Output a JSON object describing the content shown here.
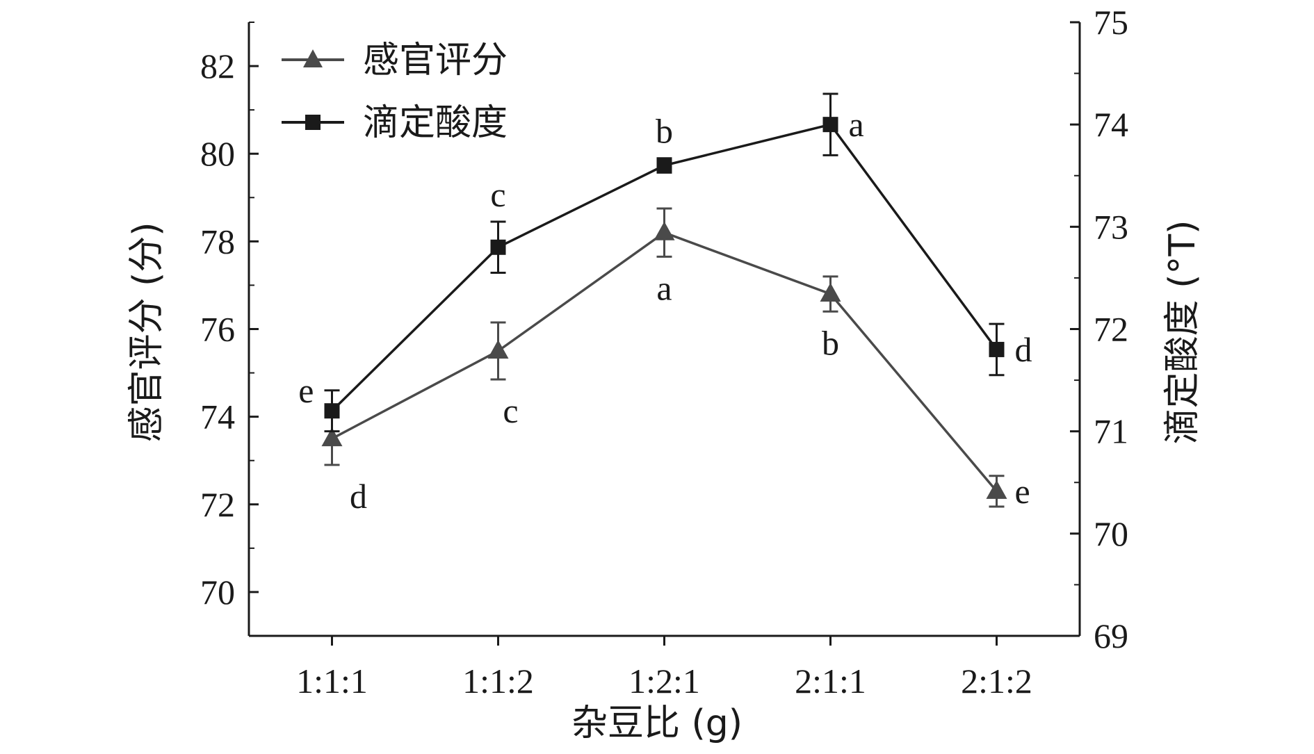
{
  "chart_data": {
    "type": "line",
    "categories": [
      "1:1:1",
      "1:1:2",
      "1:2:1",
      "2:1:1",
      "2:1:2"
    ],
    "xlabel": "杂豆比 (g)",
    "ylabel_left": "感官评分 (分)",
    "ylabel_right": "滴定酸度 (°T)",
    "ylim_left": [
      69,
      83
    ],
    "ylim_right": [
      69,
      75
    ],
    "yticks_left": [
      70,
      72,
      74,
      76,
      78,
      80,
      82
    ],
    "yticks_right": [
      69,
      70,
      71,
      72,
      73,
      74,
      75
    ],
    "legend_position": "top-left",
    "series": [
      {
        "name": "感官评分",
        "axis": "left",
        "marker": "triangle",
        "color": "#4a4a4a",
        "values": [
          73.5,
          75.5,
          78.2,
          76.8,
          72.3
        ],
        "errors": [
          0.6,
          0.65,
          0.55,
          0.4,
          0.35
        ],
        "labels": [
          "d",
          "c",
          "a",
          "b",
          "e"
        ],
        "label_side": [
          "below",
          "below",
          "below",
          "below",
          "right"
        ]
      },
      {
        "name": "滴定酸度",
        "axis": "right",
        "marker": "square",
        "color": "#1a1a1a",
        "values": [
          71.2,
          72.8,
          73.6,
          74.0,
          71.8
        ],
        "errors": [
          0.2,
          0.25,
          0.07,
          0.3,
          0.25
        ],
        "labels": [
          "e",
          "c",
          "b",
          "a",
          "d"
        ],
        "label_side": [
          "left",
          "above",
          "above",
          "right",
          "right"
        ]
      }
    ]
  }
}
